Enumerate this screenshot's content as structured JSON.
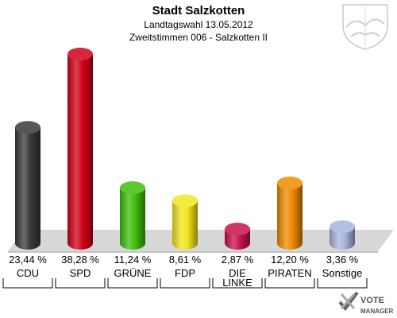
{
  "chart_data": {
    "type": "bar",
    "title": "Stadt Salzkotten",
    "subtitle_1": "Landtagswahl 13.05.2012",
    "subtitle_2": "Zweitstimmen 006 - Salzkotten II",
    "categories": [
      "CDU",
      "SPD",
      "GRÜNE",
      "FDP",
      "DIE LINKE",
      "PIRATEN",
      "Sonstige"
    ],
    "values": [
      23.44,
      38.28,
      11.24,
      8.61,
      2.87,
      12.2,
      3.36
    ],
    "value_labels": [
      "23,44 %",
      "38,28 %",
      "11,24 %",
      "8,61 %",
      "2,87 %",
      "12,20 %",
      "3,36 %"
    ],
    "colors": [
      "#3a3a3a",
      "#d10019",
      "#3fbf0a",
      "#f2e61e",
      "#c8134a",
      "#f08a00",
      "#a8b4dc"
    ],
    "ylim": [
      0,
      40
    ],
    "xlabel": "",
    "ylabel": ""
  },
  "branding": {
    "logo_line1": "VOTE",
    "logo_line2": "MANAGER"
  }
}
